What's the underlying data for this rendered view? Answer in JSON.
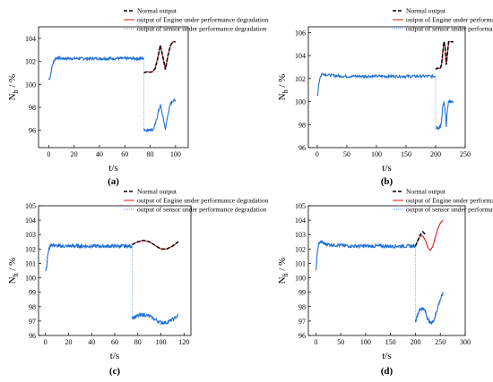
{
  "legend": {
    "normal": "Normal output",
    "engine": "output of Engine under performance degradation",
    "sensor": "output of sensor under performance degradation"
  },
  "colors": {
    "normal": "#000000",
    "engine": "#e8141c",
    "sensor": "#1f6fd6"
  },
  "chart_data": [
    {
      "type": "line",
      "panel": "(a)",
      "xlabel": "t/s",
      "ylabel_main": "N",
      "ylabel_sub": "h",
      "ylabel_unit": " / %",
      "xlim": [
        -8,
        110
      ],
      "ylim": [
        94.5,
        105
      ],
      "xticks": [
        0,
        20,
        40,
        60,
        80,
        100
      ],
      "yticks": [
        96,
        98,
        100,
        102,
        104
      ],
      "degradation_start": 75,
      "pre": {
        "x": [
          0,
          0.5,
          1,
          1.5,
          2,
          3,
          4,
          5,
          6,
          8,
          10,
          15,
          20,
          30,
          40,
          50,
          60,
          70,
          75
        ],
        "y": [
          100.4,
          100.5,
          100.6,
          100.8,
          101.2,
          101.7,
          102.0,
          102.2,
          102.3,
          102.3,
          102.25,
          102.25,
          102.25,
          102.25,
          102.25,
          102.25,
          102.25,
          102.25,
          102.25
        ]
      },
      "normal_after": {
        "x": [
          75,
          76,
          78,
          80,
          82,
          84,
          86,
          88,
          90,
          92,
          94,
          96,
          98,
          100
        ],
        "y": [
          101.0,
          101.05,
          101.1,
          101.05,
          101.1,
          101.4,
          102.3,
          103.4,
          102.4,
          101.3,
          102.5,
          103.4,
          103.7,
          103.7
        ]
      },
      "engine_after": {
        "x": [
          75,
          76,
          78,
          80,
          82,
          84,
          86,
          88,
          90,
          92,
          94,
          96,
          98,
          100
        ],
        "y": [
          101.0,
          101.05,
          101.1,
          101.05,
          101.1,
          101.4,
          102.3,
          103.4,
          102.4,
          101.3,
          102.5,
          103.4,
          103.7,
          103.7
        ]
      },
      "sensor_after": {
        "x": [
          75,
          76,
          78,
          80,
          82,
          84,
          86,
          88,
          90,
          92,
          94,
          96,
          98,
          100
        ],
        "y": [
          96.1,
          96.05,
          96.0,
          96.1,
          96.0,
          96.5,
          97.4,
          98.2,
          97.2,
          96.1,
          97.4,
          98.3,
          98.6,
          98.6
        ]
      }
    },
    {
      "type": "line",
      "panel": "(b)",
      "xlabel": "t/s",
      "ylabel_main": "N",
      "ylabel_sub": "h",
      "ylabel_unit": " / %",
      "xlim": [
        -15,
        250
      ],
      "ylim": [
        96,
        106.5
      ],
      "xticks": [
        0,
        50,
        100,
        150,
        200,
        250
      ],
      "yticks": [
        96,
        98,
        100,
        102,
        104,
        106
      ],
      "degradation_start": 200,
      "pre": {
        "x": [
          0,
          1,
          2,
          3,
          5,
          7,
          9,
          12,
          15,
          20,
          30,
          50,
          75,
          100,
          125,
          150,
          175,
          200
        ],
        "y": [
          100.5,
          100.7,
          101.2,
          101.7,
          102.1,
          102.35,
          102.45,
          102.4,
          102.35,
          102.3,
          102.25,
          102.2,
          102.2,
          102.2,
          102.2,
          102.2,
          102.2,
          102.2
        ]
      },
      "normal_after": {
        "x": [
          200,
          202,
          205,
          208,
          210,
          212,
          214,
          216,
          218,
          220,
          222,
          225,
          228,
          230
        ],
        "y": [
          102.8,
          102.9,
          102.9,
          102.9,
          103.2,
          104.2,
          105.2,
          104.8,
          103.2,
          104.2,
          105.2,
          105.2,
          105.2,
          105.2
        ]
      },
      "engine_after": {
        "x": [
          200,
          202,
          205,
          208,
          210,
          212,
          214,
          216,
          218,
          220,
          222,
          225,
          228,
          230
        ],
        "y": [
          102.8,
          102.9,
          102.9,
          102.9,
          103.2,
          104.2,
          105.2,
          104.8,
          103.2,
          104.2,
          105.2,
          105.2,
          105.2,
          105.2
        ]
      },
      "sensor_after": {
        "x": [
          200,
          202,
          205,
          208,
          210,
          212,
          214,
          216,
          218,
          220,
          222,
          225,
          228,
          230
        ],
        "y": [
          97.7,
          97.8,
          97.7,
          97.8,
          98.3,
          99.5,
          99.9,
          99.3,
          97.9,
          99.4,
          100.0,
          100.0,
          100.0,
          100.0
        ]
      }
    },
    {
      "type": "line",
      "panel": "(c)",
      "xlabel": "t/s",
      "ylabel_main": "N",
      "ylabel_sub": "h",
      "ylabel_unit": " / %",
      "xlim": [
        -6,
        126
      ],
      "ylim": [
        96,
        105
      ],
      "xticks": [
        0,
        20,
        40,
        60,
        80,
        100,
        120
      ],
      "yticks": [
        96,
        97,
        98,
        99,
        100,
        101,
        102,
        103,
        104,
        105
      ],
      "degradation_start": 75,
      "pre": {
        "x": [
          0,
          0.5,
          1,
          1.5,
          2,
          3,
          4,
          5,
          6,
          8,
          10,
          20,
          30,
          40,
          50,
          60,
          70,
          75
        ],
        "y": [
          100.5,
          100.6,
          100.8,
          101.2,
          101.6,
          101.95,
          102.2,
          102.3,
          102.3,
          102.25,
          102.2,
          102.2,
          102.2,
          102.2,
          102.2,
          102.2,
          102.2,
          102.2
        ]
      },
      "normal_after": {
        "x": [
          75,
          80,
          85,
          90,
          95,
          100,
          105,
          110,
          115
        ],
        "y": [
          102.3,
          102.5,
          102.6,
          102.5,
          102.25,
          102.0,
          102.0,
          102.2,
          102.5
        ]
      },
      "engine_after": {
        "x": [
          75,
          80,
          85,
          90,
          95,
          100,
          105,
          110,
          115
        ],
        "y": [
          102.3,
          102.5,
          102.6,
          102.5,
          102.25,
          102.0,
          102.0,
          102.2,
          102.5
        ]
      },
      "sensor_after": {
        "x": [
          75,
          80,
          85,
          90,
          95,
          100,
          105,
          110,
          115
        ],
        "y": [
          97.2,
          97.35,
          97.45,
          97.35,
          97.1,
          96.9,
          96.9,
          97.1,
          97.4
        ]
      }
    },
    {
      "type": "line",
      "panel": "(d)",
      "xlabel": "t/s",
      "ylabel_main": "N",
      "ylabel_sub": "h",
      "ylabel_unit": " / %",
      "xlim": [
        -15,
        300
      ],
      "ylim": [
        96,
        105
      ],
      "xticks": [
        0,
        50,
        100,
        150,
        200,
        250,
        300
      ],
      "yticks": [
        96,
        97,
        98,
        99,
        100,
        101,
        102,
        103,
        104,
        105
      ],
      "degradation_start": 200,
      "pre": {
        "x": [
          0,
          1,
          2,
          3,
          5,
          7,
          9,
          12,
          15,
          20,
          30,
          50,
          75,
          100,
          125,
          150,
          175,
          200
        ],
        "y": [
          100.5,
          100.8,
          101.3,
          101.8,
          102.2,
          102.45,
          102.5,
          102.45,
          102.4,
          102.35,
          102.3,
          102.25,
          102.2,
          102.2,
          102.2,
          102.2,
          102.2,
          102.2
        ]
      },
      "normal_after": {
        "x": [
          200,
          205,
          210,
          215,
          220
        ],
        "y": [
          102.2,
          102.6,
          103.0,
          103.2,
          103.0
        ]
      },
      "engine_after": {
        "x": [
          200,
          205,
          210,
          215,
          220,
          225,
          230,
          235,
          240,
          245,
          250,
          255
        ],
        "y": [
          102.2,
          102.6,
          102.9,
          102.9,
          102.6,
          102.1,
          101.9,
          102.2,
          102.8,
          103.4,
          103.8,
          104.0
        ]
      },
      "sensor_after": {
        "x": [
          200,
          205,
          210,
          215,
          220,
          225,
          230,
          235,
          240,
          245,
          250,
          255
        ],
        "y": [
          97.0,
          97.5,
          97.85,
          97.9,
          97.65,
          97.15,
          96.85,
          96.95,
          97.35,
          98.0,
          98.5,
          98.9
        ]
      }
    }
  ]
}
